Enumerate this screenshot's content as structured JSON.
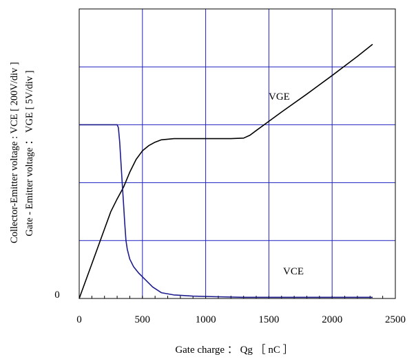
{
  "chart_data": {
    "type": "line",
    "xlabel": "Gate charge ： Qg ［ nC ］",
    "ylabel_lines": [
      "Collector-Emitter voltage : VCE [ 200V/div ]",
      "Gate - Emitter voltage ：  VGE        [ 5V/div ]"
    ],
    "xlim": [
      0,
      2500
    ],
    "y_divisions": [
      0,
      5
    ],
    "x_ticks": [
      "0",
      "500",
      "1000",
      "1500",
      "2000",
      "2500"
    ],
    "y_tick_labels": [
      "0"
    ],
    "grid": true,
    "colors": {
      "grid": "#1f1fbf",
      "axes": "#000000",
      "vge": "#000000",
      "vce": "#1c1c8c"
    },
    "series": [
      {
        "name": "VGE",
        "x": [
          0,
          100,
          200,
          250,
          300,
          350,
          400,
          450,
          500,
          550,
          600,
          650,
          700,
          750,
          800,
          1000,
          1200,
          1300,
          1350,
          1400,
          1600,
          1800,
          2000,
          2200,
          2320
        ],
        "y": [
          0,
          0.6,
          1.2,
          1.5,
          1.72,
          1.92,
          2.18,
          2.4,
          2.55,
          2.64,
          2.7,
          2.74,
          2.75,
          2.76,
          2.76,
          2.76,
          2.76,
          2.77,
          2.82,
          2.9,
          3.22,
          3.53,
          3.85,
          4.18,
          4.39
        ]
      },
      {
        "name": "VCE",
        "x": [
          0,
          300,
          310,
          320,
          330,
          340,
          350,
          360,
          370,
          380,
          400,
          430,
          470,
          520,
          580,
          650,
          750,
          900,
          1100,
          1300,
          1600,
          2000,
          2320
        ],
        "y": [
          3,
          3,
          2.95,
          2.7,
          2.35,
          2.0,
          1.65,
          1.3,
          1.0,
          0.85,
          0.68,
          0.55,
          0.44,
          0.33,
          0.2,
          0.1,
          0.06,
          0.04,
          0.03,
          0.02,
          0.02,
          0.02,
          0.02
        ]
      }
    ]
  }
}
